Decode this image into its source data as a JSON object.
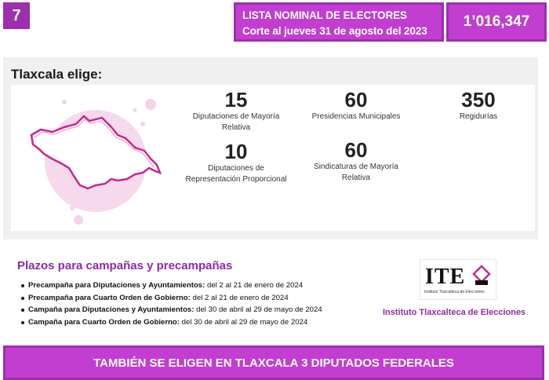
{
  "badge": {
    "number": "7"
  },
  "header": {
    "line1": "LISTA NOMINAL DE ELECTORES",
    "line2": "Corte al jueves 31 de agosto del 2023",
    "total": "1’016,347"
  },
  "summary": {
    "title": "Tlaxcala elige:",
    "stats": [
      {
        "number": "15",
        "label1": "Diputaciones de Mayoría",
        "label2": "Relativa"
      },
      {
        "number": "60",
        "label1": "Presidencias Municipales",
        "label2": ""
      },
      {
        "number": "350",
        "label1": "Regidurías",
        "label2": ""
      },
      {
        "number": "10",
        "label1": "Diputaciones de",
        "label2": "Representación Proporcional"
      },
      {
        "number": "60",
        "label1": "Sindicaturas de Mayoría",
        "label2": "Relativa"
      }
    ]
  },
  "deadlines": {
    "title": "Plazos para campañas y precampañas",
    "items": [
      {
        "bold": "Precampaña para Diputaciones y Ayuntamientos:",
        "text": " del 2 al 21 de enero de 2024"
      },
      {
        "bold": "Precampaña para Cuarto Orden de Gobierno:",
        "text": " del 2 al 21 de enero de 2024"
      },
      {
        "bold": "Campaña para Diputaciones y Ayuntamientos:",
        "text": " del 30 de abril al 29 de mayo de 2024"
      },
      {
        "bold": "Campaña para Cuarto Orden de Gobierno:",
        "text": " del 30 de abril al 29 de mayo de 2024"
      }
    ]
  },
  "logo": {
    "text": "ITE",
    "subtitle": "Instituto Tlaxcalteca de Elecciones",
    "caption": "Instituto Tlaxcalteca de Elecciones"
  },
  "footer": {
    "text": "TAMBIÉN SE ELIGEN EN TLAXCALA 3 DIPUTADOS FEDERALES"
  },
  "colors": {
    "purple": "#c13ed0",
    "dark_purple": "#9b2fae",
    "pink_map": "#e9a3d4"
  }
}
